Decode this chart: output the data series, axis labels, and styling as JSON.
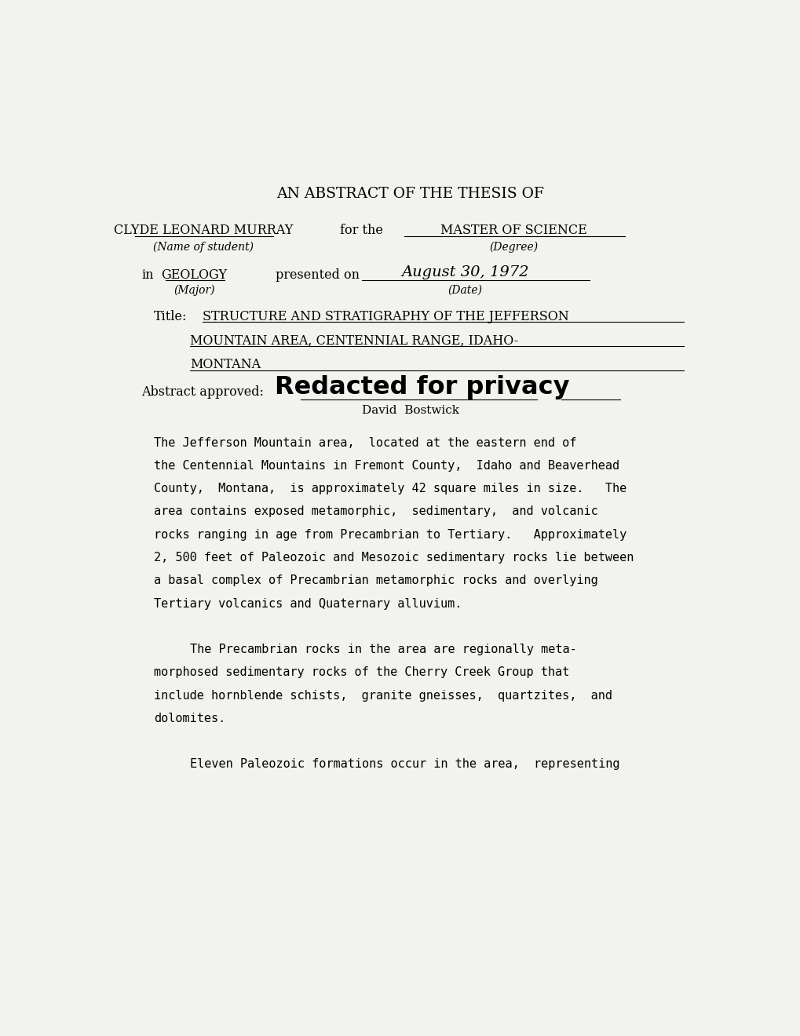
{
  "bg_color": "#f2f2ee",
  "text_color": "#000000",
  "page_width": 10.2,
  "page_height": 13.2,
  "header": "AN ABSTRACT OF THE THESIS OF",
  "student_name": "CLYDE LEONARD MURRAY",
  "for_the": "for the",
  "degree": "MASTER OF SCIENCE",
  "name_label": "(Name of student)",
  "degree_label": "(Degree)",
  "in_text": "in",
  "major": "GEOLOGY",
  "presented_on": "presented on",
  "date_handwritten": "August 30, 1972",
  "major_label": "(Major)",
  "date_label": "(Date)",
  "title_label": "Title:",
  "title_line1": "STRUCTURE AND STRATIGRAPHY OF THE JEFFERSON",
  "title_line2": "MOUNTAIN AREA, CENTENNIAL RANGE, IDAHO-",
  "title_line3": "MONTANA",
  "abstract_approved": "Abstract approved:",
  "redacted_text": "Redacted for privacy",
  "approved_name": "David  Bostwick",
  "body_lines": [
    {
      "text": "The Jefferson Mountain area,  located at the eastern end of",
      "indent": false
    },
    {
      "text": "the Centennial Mountains in Fremont County,  Idaho and Beaverhead",
      "indent": false
    },
    {
      "text": "County,  Montana,  is approximately 42 square miles in size.   The",
      "indent": false
    },
    {
      "text": "area contains exposed metamorphic,  sedimentary,  and volcanic",
      "indent": false
    },
    {
      "text": "rocks ranging in age from Precambrian to Tertiary.   Approximately",
      "indent": false
    },
    {
      "text": "2, 500 feet of Paleozoic and Mesozoic sedimentary rocks lie between",
      "indent": false
    },
    {
      "text": "a basal complex of Precambrian metamorphic rocks and overlying",
      "indent": false
    },
    {
      "text": "Tertiary volcanics and Quaternary alluvium.",
      "indent": false
    },
    {
      "text": "",
      "indent": false
    },
    {
      "text": "The Precambrian rocks in the area are regionally meta-",
      "indent": true
    },
    {
      "text": "morphosed sedimentary rocks of the Cherry Creek Group that",
      "indent": false
    },
    {
      "text": "include hornblende schists,  granite gneisses,  quartzites,  and",
      "indent": false
    },
    {
      "text": "dolomites.",
      "indent": false
    },
    {
      "text": "",
      "indent": false
    },
    {
      "text": "Eleven Paleozoic formations occur in the area,  representing",
      "indent": true
    }
  ]
}
